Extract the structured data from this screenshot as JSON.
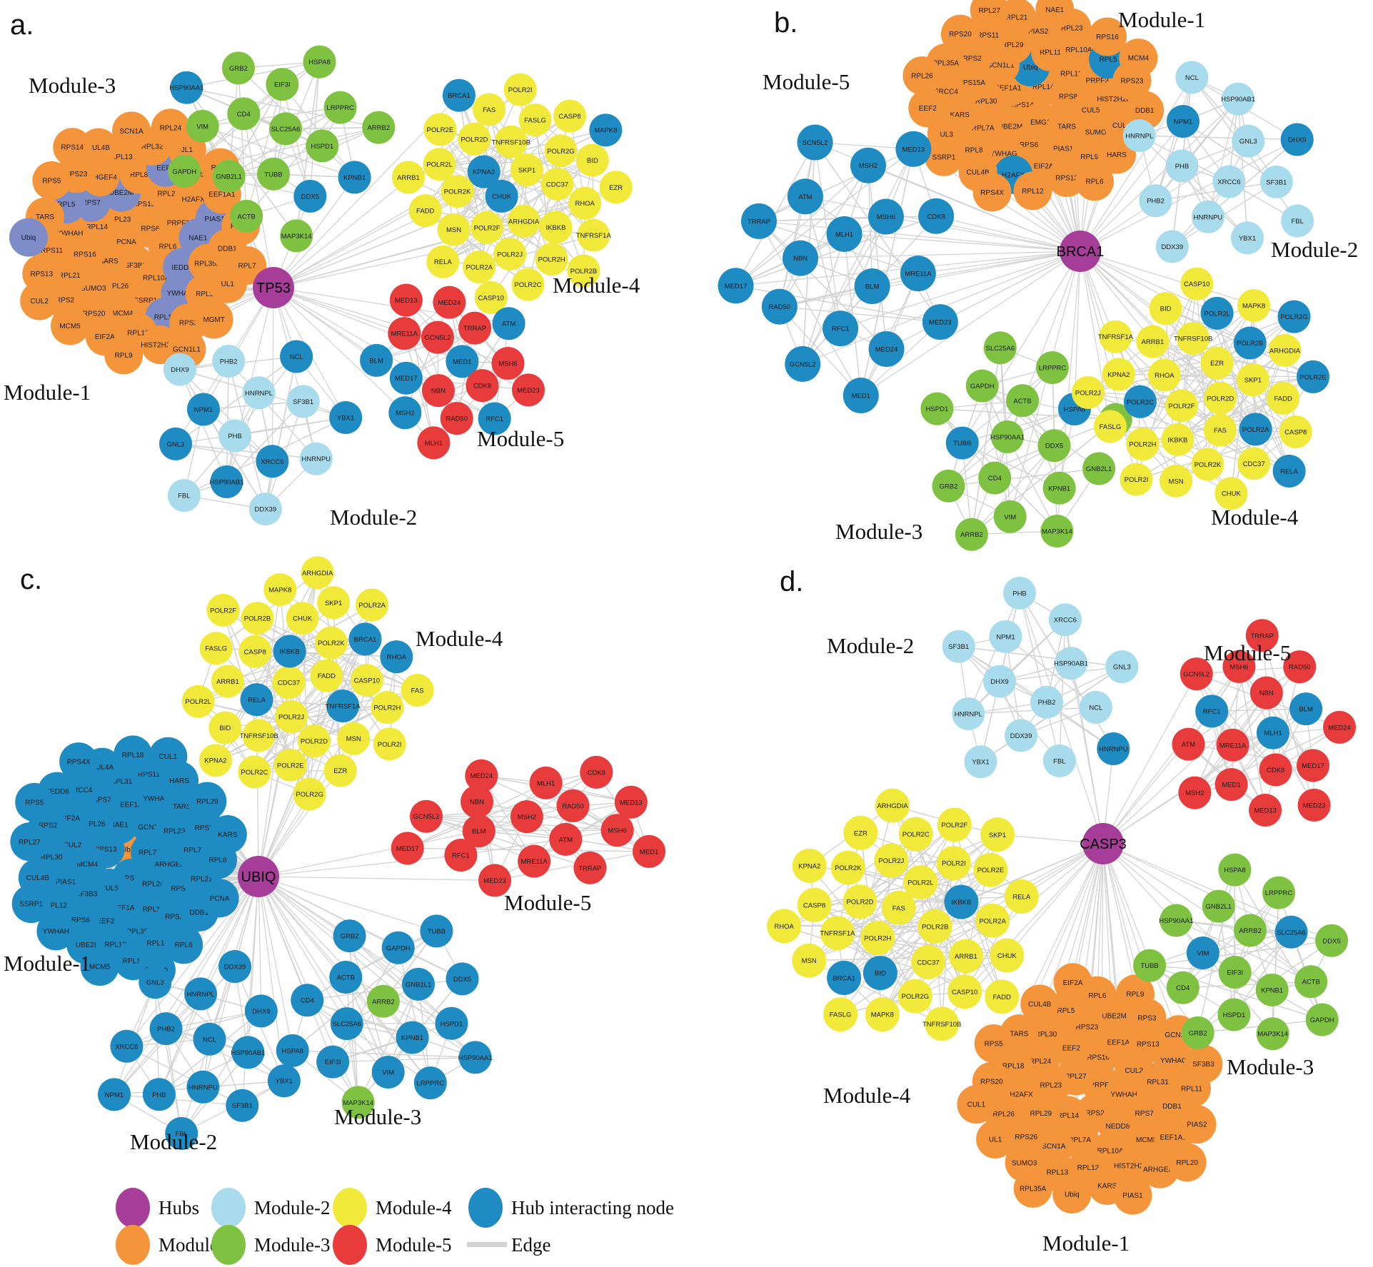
{
  "node_encoding": "Each node is 'NAME' (module default colour) or 'NAME|flag' where flag i=hub-interacting blue, m=muted slate-blue interactor, o=orange (Module-1 colour), g=green (Module-3 colour)",
  "colors": {
    "hub": "#A63D99",
    "module1": "#F5953B",
    "module2": "#A8DCED",
    "module3": "#7FC241",
    "module4": "#F2EA3B",
    "module5": "#E73B3C",
    "interactor": "#1E8BC3",
    "interactor_muted": "#7E8CC8",
    "edge": "#D2D2D2"
  },
  "legend": {
    "items": [
      {
        "label": "Hubs",
        "color": "hub",
        "type": "circle"
      },
      {
        "label": "Module-1",
        "color": "module1",
        "type": "circle"
      },
      {
        "label": "Module-2",
        "color": "module2",
        "type": "circle"
      },
      {
        "label": "Module-3",
        "color": "module3",
        "type": "circle"
      },
      {
        "label": "Module-4",
        "color": "module4",
        "type": "circle"
      },
      {
        "label": "Module-5",
        "color": "module5",
        "type": "circle"
      },
      {
        "label": "Hub interacting node",
        "color": "interactor",
        "type": "circle"
      },
      {
        "label": "Edge",
        "color": "edge",
        "type": "line"
      }
    ]
  },
  "panels": [
    {
      "id": "a",
      "letter": "a.",
      "hub": "TP53",
      "modules": [
        {
          "name": "Module-1",
          "default": "module1",
          "fan": true,
          "nodes": [
            "PCNA",
            "RPS6",
            "SF3B3",
            "RPL23",
            "RPL6",
            "HARS",
            "RPS15A",
            "RPL10A",
            "RPL14",
            "PRPF3",
            "RPL26",
            "UBE2M|m",
            "IEDD8|m",
            "RPS16",
            "RPL29",
            "SSRP1",
            "RPS7|m",
            "NAE1|m",
            "SUMO3",
            "RPL8",
            "YWHAG|m",
            "YWHAH",
            "H2AFX",
            "MCM4",
            "ARHGEF4",
            "RPL35A",
            "RPL21",
            "EEF2|m",
            "RPL11|m",
            "RPL5|m",
            "PIAS1|m",
            "RPS20",
            "RPL13",
            "RPL3",
            "RPS11",
            "KARS",
            "RPL12",
            "RPS23",
            "DDB1",
            "RPS2",
            "RPL32",
            "RPS3",
            "TARS",
            "EEF1A1",
            "EIF2A",
            "CUL4B",
            "UL1",
            "RPS13",
            "JL1",
            "HIST2H2BE",
            "RPS5",
            "PIAS2",
            "MCM5",
            "SCN1A",
            "MGMT",
            "Ubiq|m",
            "RPS8",
            "RPL9",
            "RPS14",
            "RPL7",
            "CUL2",
            "RPL24",
            "GCN1L1"
          ]
        },
        {
          "name": "Module-2",
          "default": "module2",
          "nodes": [
            "PHB",
            "HNRNPL",
            "XRCC6|i",
            "NPM1|i",
            "SF3B1",
            "HSP90AB1|i",
            "PHB2",
            "HNRNPU",
            "GNL3|i",
            "NCL|i",
            "DDX39",
            "DHX9",
            "YBX1|i",
            "FBL"
          ]
        },
        {
          "name": "Module-3",
          "default": "module3",
          "nodes": [
            "SLC25A6",
            "TUBB",
            "CD4",
            "HSPD1",
            "GNB2L1",
            "EIF3I",
            "DDX5|i",
            "VIM",
            "LRPPRC",
            "ACTB",
            "GRB2",
            "KPNB1|i",
            "GAPDH",
            "HSPA8",
            "MAP3K14",
            "HSP90AA1|i",
            "ARRB2"
          ]
        },
        {
          "name": "Module-4",
          "default": "module4",
          "nodes": [
            "CHUK|i",
            "SKP1",
            "ARHGDIA",
            "KPNA2|i",
            "CDC37",
            "POLR2F",
            "TNFRSF10B",
            "IKBKB",
            "POLR2K",
            "POLR2G",
            "POLR2J",
            "POLR2D",
            "RHOA",
            "MSN",
            "FASLG",
            "POLR2H",
            "POLR2L",
            "BID",
            "POLR2A",
            "FAS",
            "TNFRSF1A",
            "FADD",
            "CASP8",
            "POLR2C",
            "POLR2E",
            "EZR",
            "RELA",
            "POLR2I",
            "POLR2B",
            "ARRB1",
            "MAPK8|i",
            "CASP10",
            "BRCA1|i"
          ]
        },
        {
          "name": "Module-5",
          "default": "module5",
          "nodes": [
            "MED1|i",
            "NBN",
            "GCN5L2",
            "CDK8",
            "MED17|i",
            "TRRAP",
            "RAD50",
            "MRE11A",
            "MSH6",
            "MSH2|i",
            "MED24",
            "RFC1|i",
            "BLM|i",
            "ATM|i",
            "MLH1",
            "MED13",
            "MED23"
          ]
        }
      ]
    },
    {
      "id": "b",
      "letter": "b.",
      "hub": "BRCA1",
      "modules": [
        {
          "name": "Module-1",
          "default": "module1",
          "fan": true,
          "nodes": [
            "RPS14",
            "RPL14",
            "EMG1",
            "EEF1A1",
            "RPS8",
            "UBE2M",
            "Ubiq|i",
            "TARS",
            "RPL30",
            "RPL13",
            "RPS6",
            "GCN1L1",
            "CUL5",
            "RPL7A",
            "RPL11",
            "PIAS1",
            "RPS15A",
            "PRPF3",
            "YWHAG",
            "RPL29",
            "SUMO3",
            "KARS",
            "RPL10A",
            "EIF2A",
            "RPS2",
            "HIST2H2BE",
            "RPL8",
            "PIAS2",
            "RPL9",
            "ERCC4",
            "RPL5|i",
            "H2AFX|i",
            "RPS11",
            "CUL4A",
            "UL3",
            "RPL23",
            "RPS12",
            "RPL35A",
            "RPS23",
            "CUL4B",
            "RPL21",
            "HARS",
            "EEF2",
            "RPS16",
            "RPL12",
            "RPS20",
            "DDB1",
            "SSRP1",
            "NAE1",
            "RPL6",
            "RPL26",
            "MCM4",
            "RPS4X",
            "RPL27"
          ]
        },
        {
          "name": "Module-2",
          "default": "module2",
          "nodes": [
            "XRCC6",
            "PHB",
            "GNL3",
            "HNRNPU",
            "NPM1|i",
            "SF3B1",
            "PHB2",
            "HSP90AB1",
            "YBX1",
            "HNRNPL",
            "DHX9|i",
            "DDX39",
            "NCL",
            "FBL"
          ]
        },
        {
          "name": "Module-3",
          "default": "module3",
          "nodes": [
            "HSP90AA1",
            "DDX5",
            "CD4",
            "ACTB",
            "KPNB1",
            "TUBB|i",
            "HSPA8|i",
            "VIM",
            "GAPDH",
            "GNB2L1",
            "GRB2",
            "LRPPRC",
            "MAP3K14",
            "HSPD1",
            "EIF3I",
            "ARRB2",
            "SLC25A6"
          ]
        },
        {
          "name": "Module-4",
          "default": "module4",
          "nodes": [
            "POLR2D",
            "POLR2F",
            "EZR",
            "FAS",
            "RHOA",
            "SKP1",
            "IKBKB",
            "TNFRSF10B",
            "POLR2A|i",
            "POLR2C|i",
            "POLR2B|i",
            "POLR2K",
            "ARRB1",
            "FADD",
            "POLR2H",
            "POLR2L|i",
            "CDC37",
            "KPNA2",
            "ARHGDIA",
            "MSN",
            "BID",
            "CASP8",
            "FASLG",
            "MAPK8",
            "CHUK",
            "TNFRSF1A",
            "POLR2E|i",
            "POLR2I",
            "CASP10",
            "RELA|i",
            "POLR2J",
            "POLR2G|i"
          ]
        },
        {
          "name": "Module-5",
          "default": "module5",
          "nodes": [
            "MLH1|i",
            "BLM|i",
            "NBN|i",
            "MSH6|i",
            "RFC1|i",
            "ATM|i",
            "MRE11A|i",
            "RAD50|i",
            "MSH2|i",
            "MED24|i",
            "TRRAP|i",
            "CDK8|i",
            "GCN5L2|i",
            "SCN5L2|i",
            "MED23|i",
            "MED17|i",
            "MED13|i",
            "MED1|i"
          ]
        }
      ]
    },
    {
      "id": "c",
      "letter": "c.",
      "hub": "UBIQ",
      "modules": [
        {
          "name": "Module-1",
          "default": "module1",
          "fan": true,
          "nodes": [
            "Ubiq|o",
            "RPS16|i",
            "RPS13|i",
            "RPL7A|i",
            "CUL5|i",
            "NAE1|i",
            "RPL24|i",
            "MCM4|i",
            "GCN1L1|i",
            "EEF1A1|i",
            "RPL26|i",
            "ARHGEF4|i",
            "SF3B3|i",
            "EEF1A2|i",
            "RPL14|i",
            "CUL2|i",
            "RPL23|i",
            "EEF2|i",
            "RPS7|i",
            "RPS8|i",
            "PIAS1|i",
            "YWHAG|i",
            "RPL35A|i",
            "EIF2A|i",
            "RPL7|i",
            "RPS6|i",
            "RPL31|i",
            "RPS23|i",
            "RPL30|i",
            "TARS|i",
            "RPL13|i",
            "ERCC4|i",
            "RPL21|i",
            "RPL12|i",
            "RPS11|i",
            "RPL10A|i",
            "RPS2|i",
            "RPS3|i",
            "UBE2I|i",
            "CUL4A|i",
            "DDB1|i",
            "CUL4B|i",
            "HARS|i",
            "RPL11|i",
            "NEDD8|i",
            "RPL8|i",
            "YWHAH|i",
            "RPL18|i",
            "RPL6|i",
            "RPL27|i",
            "RPL29|i",
            "MCM5|i",
            "RPS4X|i",
            "PCNA|i",
            "SSRP1|i",
            "CUL1|i",
            "RPS20|i",
            "RPS5|i",
            "KARS|i"
          ]
        },
        {
          "name": "Module-2",
          "default": "module2",
          "nodes": [
            "NCL|i",
            "HNRNPU|i",
            "PHB2|i",
            "HSP90AB1|i",
            "PHB|i",
            "HNRNPL|i",
            "SF3B1|i",
            "XRCC6|i",
            "DHX9|i",
            "FBL|i",
            "GNL3|i",
            "YBX1|i",
            "NPM1|i",
            "DDX39|i"
          ]
        },
        {
          "name": "Module-3",
          "default": "module3",
          "nodes": [
            "ARRB2",
            "KPNB1|i",
            "SLC25A6|i",
            "GNB2L1|i",
            "VIM|i",
            "ACTB|i",
            "HSPD1|i",
            "EIF3I|i",
            "GAPDH|i",
            "LRPPRC|i",
            "CD4|i",
            "DDX5|i",
            "MAP3K14",
            "GRB2|i",
            "HSP90AA1|i",
            "HSPA8|i",
            "TUBB|i"
          ]
        },
        {
          "name": "Module-4",
          "default": "module4",
          "nodes": [
            "CDC37",
            "FADD",
            "POLR2J",
            "IKBKB|i",
            "TNFRSF1A|i",
            "RELA|i",
            "POLR2K",
            "POLR2D",
            "CASP8",
            "CASP10",
            "TNFRSF10B",
            "CHUK",
            "MSN",
            "ARRB1",
            "BRCA1|i",
            "POLR2E",
            "POLR2B",
            "POLR2H",
            "BID",
            "SKP1",
            "EZR",
            "FASLG",
            "RHOA|i",
            "POLR2C",
            "MAPK8",
            "POLR2I",
            "POLR2L",
            "POLR2A",
            "POLR2G",
            "POLR2F",
            "FAS",
            "KPNA2",
            "ARHGDIA"
          ]
        },
        {
          "name": "Module-5",
          "default": "module5",
          "nodes": [
            "MSH2",
            "ATM",
            "BLM",
            "RAD50",
            "MRE11A",
            "NBN",
            "MSH6",
            "RFC1",
            "MLH1",
            "TRRAP",
            "GCN5L2",
            "MED13",
            "MED23",
            "MED24",
            "MED1",
            "MED17",
            "CDK8"
          ]
        }
      ]
    },
    {
      "id": "d",
      "letter": "d.",
      "hub": "CASP3",
      "modules": [
        {
          "name": "Module-1",
          "default": "module1",
          "fan": true,
          "nodes": [
            "PRPF3",
            "RPS2",
            "RPL27",
            "YWHAH",
            "RPL14",
            "RPS16",
            "NEDD8",
            "RPL23",
            "CUL2",
            "RPL7A",
            "EEF2",
            "RPS7",
            "RPL29",
            "EEF1A2",
            "RPL10A",
            "RPL24",
            "RPL31",
            "SCN1A",
            "RPS23",
            "MCM5",
            "H2AFX",
            "RPS13",
            "RPL12",
            "RPL30",
            "DDB1",
            "RPS26",
            "UBE2M",
            "HIST2H2BE",
            "RPL18",
            "YWHAG",
            "RPL13",
            "RPL5",
            "EEF1A1",
            "RPL26",
            "RPS3",
            "KARS",
            "TARS",
            "RPL11",
            "SUMO3",
            "RPL6",
            "ARHGEF4",
            "RPS20",
            "GCN1L1",
            "Ubiq",
            "CUL4B",
            "PIAS2",
            "UL1",
            "RPL9",
            "PIAS1",
            "RPS5",
            "SF3B3",
            "RPL35A",
            "EIF2A",
            "RPL20",
            "CUL1"
          ]
        },
        {
          "name": "Module-2",
          "default": "module2",
          "nodes": [
            "PHB2",
            "DHX9",
            "HSP90AB1",
            "DDX39",
            "NPM1",
            "NCL",
            "HNRNPL",
            "XRCC6",
            "FBL",
            "SF3B1",
            "GNL3",
            "YBX1",
            "PHB",
            "HNRNPU|i"
          ]
        },
        {
          "name": "Module-3",
          "default": "module3",
          "nodes": [
            "EIF3I",
            "ARRB2",
            "KPNB1",
            "VIM|i",
            "SLC25A6|i",
            "HSPD1",
            "GNB2L1",
            "ACTB",
            "CD4",
            "LRPPRC",
            "MAP3K14",
            "HSP90AA1",
            "DDX5",
            "GRB2",
            "HSPA8",
            "GAPDH",
            "TUBB"
          ]
        },
        {
          "name": "Module-4",
          "default": "module4",
          "nodes": [
            "FAS",
            "POLR2B",
            "POLR2H",
            "POLR2L",
            "CDC37",
            "POLR2D",
            "IKBKB|i",
            "BID|i",
            "POLR2J",
            "ARRB1",
            "TNFRSF1A",
            "POLR2I",
            "POLR2G",
            "POLR2K",
            "POLR2A",
            "BRCA1|i",
            "POLR2C",
            "CASP10",
            "CASP8",
            "POLR2E",
            "MAPK8",
            "EZR",
            "CHUK",
            "MSN",
            "POLR2F",
            "TNFRSF10B",
            "KPNA2",
            "RELA",
            "FASLG",
            "ARHGDIA",
            "FADD",
            "RHOA",
            "SKP1"
          ]
        },
        {
          "name": "Module-5",
          "default": "module5",
          "nodes": [
            "MLH1|i",
            "MRE11A",
            "NBN",
            "CDK8",
            "RFC1|i",
            "BLM|i",
            "MED1",
            "MSH6",
            "MED17",
            "ATM",
            "RAD50",
            "MED13",
            "GCN5L2",
            "MED24",
            "MSH2",
            "TRRAP",
            "MED23"
          ]
        }
      ]
    }
  ]
}
